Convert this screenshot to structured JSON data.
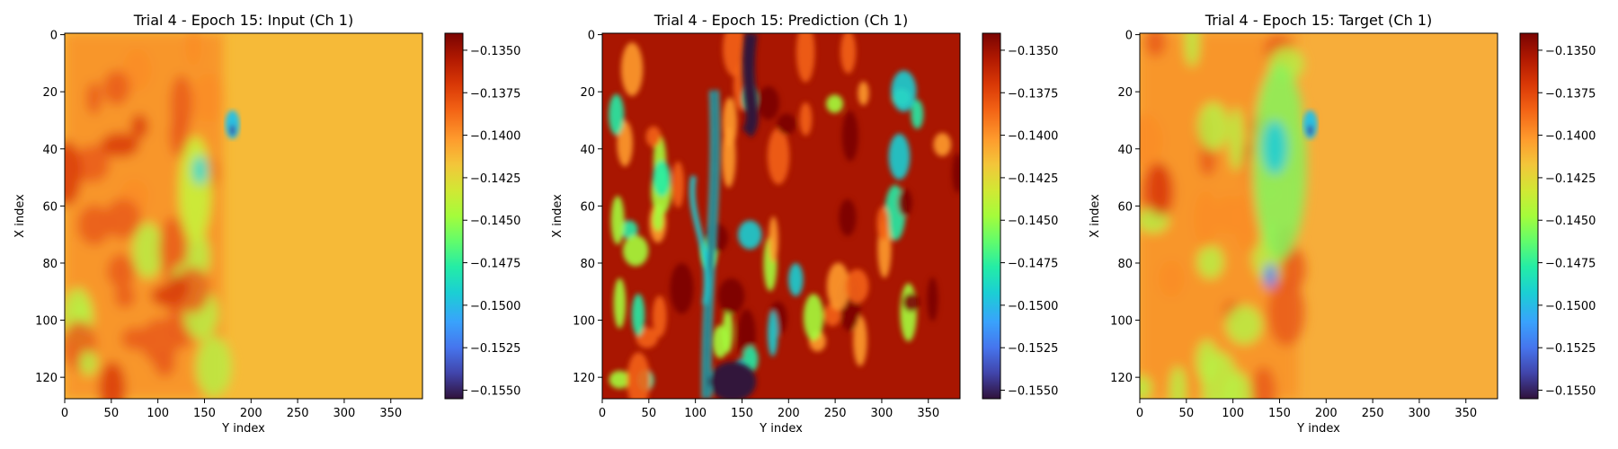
{
  "chart_data": [
    {
      "type": "heatmap",
      "title": "Trial 4 - Epoch 15: Input (Ch 1)",
      "xlabel": "Y index",
      "ylabel": "X index",
      "xlim": [
        0,
        384
      ],
      "ylim": [
        128,
        0
      ],
      "xticks": [
        "0",
        "50",
        "100",
        "150",
        "200",
        "250",
        "300",
        "350"
      ],
      "yticks": [
        "0",
        "20",
        "40",
        "60",
        "80",
        "100",
        "120"
      ],
      "colorbar_ticks": [
        "−0.1350",
        "−0.1375",
        "−0.1400",
        "−0.1425",
        "−0.1450",
        "−0.1475",
        "−0.1500",
        "−0.1525",
        "−0.1550"
      ],
      "colorbar_range": [
        -0.1555,
        -0.134
      ]
    },
    {
      "type": "heatmap",
      "title": "Trial 4 - Epoch 15: Prediction (Ch 1)",
      "xlabel": "Y index",
      "ylabel": "X index",
      "xlim": [
        0,
        384
      ],
      "ylim": [
        128,
        0
      ],
      "xticks": [
        "0",
        "50",
        "100",
        "150",
        "200",
        "250",
        "300",
        "350"
      ],
      "yticks": [
        "0",
        "20",
        "40",
        "60",
        "80",
        "100",
        "120"
      ],
      "colorbar_ticks": [
        "−0.1350",
        "−0.1375",
        "−0.1400",
        "−0.1425",
        "−0.1450",
        "−0.1475",
        "−0.1500",
        "−0.1525",
        "−0.1550"
      ],
      "colorbar_range": [
        -0.1555,
        -0.134
      ]
    },
    {
      "type": "heatmap",
      "title": "Trial 4 - Epoch 15: Target (Ch 1)",
      "xlabel": "Y index",
      "ylabel": "X index",
      "xlim": [
        0,
        384
      ],
      "ylim": [
        128,
        0
      ],
      "xticks": [
        "0",
        "50",
        "100",
        "150",
        "200",
        "250",
        "300",
        "350"
      ],
      "yticks": [
        "0",
        "20",
        "40",
        "60",
        "80",
        "100",
        "120"
      ],
      "colorbar_ticks": [
        "−0.1350",
        "−0.1375",
        "−0.1400",
        "−0.1425",
        "−0.1450",
        "−0.1475",
        "−0.1500",
        "−0.1525",
        "−0.1550"
      ],
      "colorbar_range": [
        -0.1555,
        -0.134
      ]
    }
  ],
  "colormap": "turbo"
}
